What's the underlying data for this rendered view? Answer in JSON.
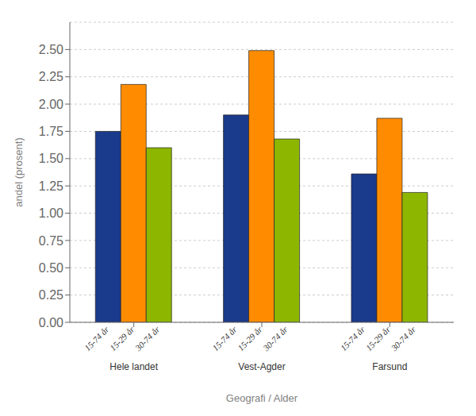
{
  "chart_data": {
    "type": "bar",
    "categories": [
      "Hele landet",
      "Vest-Agder",
      "Farsund"
    ],
    "series": [
      {
        "name": "15-74 år",
        "color": "#1A3A8C",
        "values": [
          1.75,
          1.9,
          1.36
        ]
      },
      {
        "name": "15-29 år",
        "color": "#FF8C00",
        "values": [
          2.18,
          2.49,
          1.87
        ]
      },
      {
        "name": "30-74 år",
        "color": "#8DB600",
        "values": [
          1.6,
          1.68,
          1.19
        ]
      }
    ],
    "xlabel": "Geografi / Alder",
    "ylabel": "andel (prosent)",
    "ylim": [
      0.0,
      2.75
    ],
    "yticks": [
      {
        "value": 0,
        "label": "0.00"
      },
      0.25,
      {
        "value": 0.5,
        "label": "0.50"
      },
      0.75,
      {
        "value": 1,
        "label": "1.00"
      },
      1.25,
      {
        "value": 1.5,
        "label": "1.50"
      },
      1.75,
      {
        "value": 2,
        "label": "2.00"
      },
      2.25,
      {
        "value": 2.5,
        "label": "2.50"
      }
    ],
    "grid": "y"
  }
}
